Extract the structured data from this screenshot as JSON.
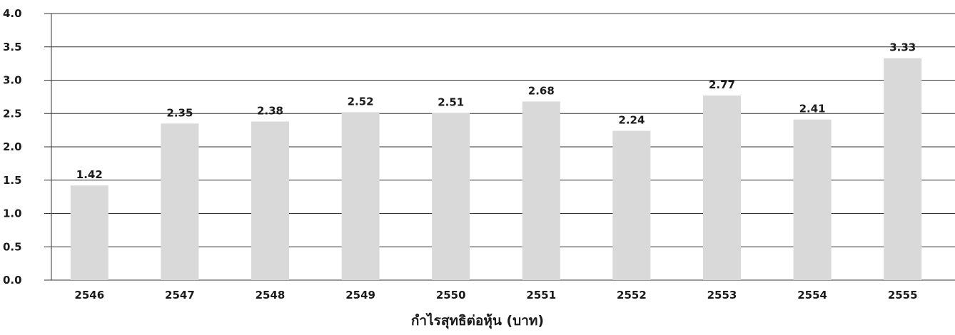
{
  "chart_data": {
    "type": "bar",
    "title": "",
    "xlabel": "กำไรสุทธิต่อหุ้น (บาท)",
    "ylabel": "",
    "categories": [
      "2546",
      "2547",
      "2548",
      "2549",
      "2550",
      "2551",
      "2552",
      "2553",
      "2554",
      "2555"
    ],
    "values": [
      1.42,
      2.35,
      2.38,
      2.52,
      2.51,
      2.68,
      2.24,
      2.77,
      2.41,
      3.33
    ],
    "value_labels": [
      "1.42",
      "2.35",
      "2.38",
      "2.52",
      "2.51",
      "2.68",
      "2.24",
      "2.77",
      "2.41",
      "3.33"
    ],
    "ylim": [
      0,
      4.0
    ],
    "yticks": [
      "0.0",
      "0.5",
      "1.0",
      "1.5",
      "2.0",
      "2.5",
      "3.0",
      "3.5",
      "4.0"
    ],
    "grid": true,
    "legend": "none",
    "colors": {
      "bar": "#d9d9d9",
      "grid": "#333333",
      "text": "#1a1a1a"
    }
  }
}
